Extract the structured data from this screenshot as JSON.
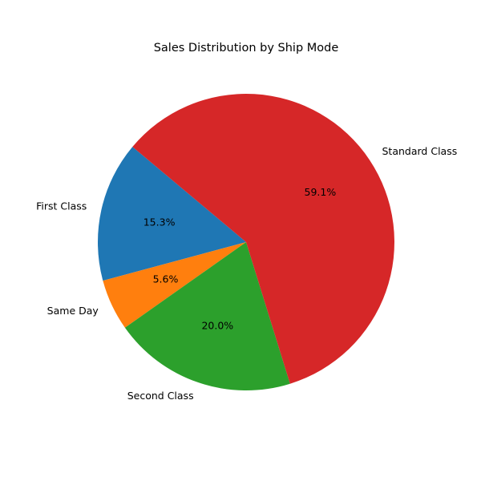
{
  "chart_data": {
    "type": "pie",
    "title": "Sales Distribution by Ship Mode",
    "categories": [
      "First Class",
      "Same Day",
      "Second Class",
      "Standard Class"
    ],
    "values": [
      15.3,
      5.6,
      20.0,
      59.1
    ],
    "value_labels": [
      "15.3%",
      "5.6%",
      "20.0%",
      "59.1%"
    ],
    "colors": [
      "#1f77b4",
      "#ff7f0e",
      "#2ca02c",
      "#d62728"
    ],
    "start_angle_deg": 140,
    "direction": "counterclockwise",
    "legend": "none"
  }
}
